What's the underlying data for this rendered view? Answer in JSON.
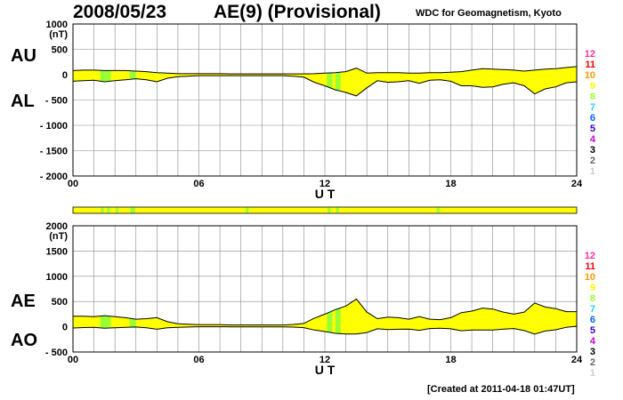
{
  "header": {
    "date": "2008/05/23",
    "title": "AE(9)  (Provisional)",
    "org": "WDC for Geomagnetism, Kyoto"
  },
  "footer": "[Created at 2011-04-18 01:47UT]",
  "legend_levels": [
    {
      "label": "12",
      "color": "#ff3399"
    },
    {
      "label": "11",
      "color": "#ff0000"
    },
    {
      "label": "10",
      "color": "#ff9900"
    },
    {
      "label": "9",
      "color": "#ffff00"
    },
    {
      "label": "8",
      "color": "#99ff33"
    },
    {
      "label": "7",
      "color": "#33ccff"
    },
    {
      "label": "6",
      "color": "#0066ff"
    },
    {
      "label": "5",
      "color": "#3300cc"
    },
    {
      "label": "4",
      "color": "#cc00cc"
    },
    {
      "label": "3",
      "color": "#000000"
    },
    {
      "label": "2",
      "color": "#666666"
    },
    {
      "label": "1",
      "color": "#cccccc"
    }
  ],
  "colors": {
    "fill": "#ffff00",
    "flag_green": "#99ff33",
    "grid": "#888888"
  },
  "station_strip": {
    "base_color": "#ffff00",
    "green_hours": [
      1.4,
      1.7,
      2.1,
      2.8,
      2.9,
      8.3,
      12.2,
      12.6,
      17.4
    ]
  },
  "chart_data": [
    {
      "type": "area",
      "name": "AU/AL",
      "unit_label": "(nT)",
      "side_labels": [
        "AU",
        "AL"
      ],
      "xlabel": "U T",
      "xlim": [
        0,
        24
      ],
      "ylim": [
        -2000,
        1000
      ],
      "x_ticks": [
        "00",
        "06",
        "12",
        "18",
        "24"
      ],
      "y_ticks": [
        "1000",
        "500",
        "0",
        "- 500",
        "- 1000",
        "- 1500",
        "- 2000"
      ],
      "y_tick_values": [
        1000,
        500,
        0,
        -500,
        -1000,
        -1500,
        -2000
      ],
      "green_bands": [
        [
          1.3,
          1.8
        ],
        [
          2.7,
          3.0
        ],
        [
          12.1,
          12.35
        ],
        [
          12.5,
          12.75
        ]
      ],
      "x": [
        0,
        0.5,
        1,
        1.5,
        2,
        2.5,
        3,
        3.5,
        4,
        4.5,
        5,
        5.5,
        6,
        6.5,
        7,
        7.5,
        8,
        8.5,
        9,
        9.5,
        10,
        10.5,
        11,
        11.5,
        12,
        12.5,
        13,
        13.5,
        14,
        14.5,
        15,
        15.5,
        16,
        16.5,
        17,
        17.5,
        18,
        18.5,
        19,
        19.5,
        20,
        20.5,
        21,
        21.5,
        22,
        22.5,
        23,
        23.5,
        24
      ],
      "series": [
        {
          "name": "AU",
          "values": [
            80,
            90,
            90,
            80,
            80,
            80,
            70,
            60,
            40,
            30,
            20,
            20,
            20,
            20,
            20,
            15,
            15,
            15,
            15,
            15,
            15,
            15,
            15,
            20,
            30,
            40,
            60,
            130,
            30,
            40,
            40,
            40,
            30,
            30,
            40,
            40,
            50,
            60,
            90,
            120,
            110,
            100,
            90,
            70,
            90,
            110,
            120,
            140,
            160
          ]
        },
        {
          "name": "AL",
          "values": [
            -130,
            -120,
            -110,
            -140,
            -120,
            -100,
            -80,
            -100,
            -140,
            -70,
            -40,
            -30,
            -20,
            -20,
            -20,
            -20,
            -20,
            -20,
            -20,
            -20,
            -20,
            -30,
            -50,
            -150,
            -220,
            -300,
            -350,
            -420,
            -260,
            -120,
            -150,
            -140,
            -120,
            -170,
            -110,
            -100,
            -130,
            -220,
            -220,
            -250,
            -240,
            -190,
            -160,
            -220,
            -380,
            -280,
            -240,
            -160,
            -140
          ]
        }
      ]
    },
    {
      "type": "area",
      "name": "AE/AO",
      "unit_label": "(nT)",
      "side_labels": [
        "AE",
        "AO"
      ],
      "xlabel": "U T",
      "xlim": [
        0,
        24
      ],
      "ylim": [
        -500,
        2000
      ],
      "x_ticks": [
        "00",
        "06",
        "12",
        "18",
        "24"
      ],
      "y_ticks": [
        "2000",
        "1500",
        "1000",
        "500",
        "0",
        "- 500"
      ],
      "y_tick_values": [
        2000,
        1500,
        1000,
        500,
        0,
        -500
      ],
      "green_bands": [
        [
          1.3,
          1.8
        ],
        [
          2.7,
          3.0
        ],
        [
          12.1,
          12.35
        ],
        [
          12.5,
          12.75
        ]
      ],
      "x": [
        0,
        0.5,
        1,
        1.5,
        2,
        2.5,
        3,
        3.5,
        4,
        4.5,
        5,
        5.5,
        6,
        6.5,
        7,
        7.5,
        8,
        8.5,
        9,
        9.5,
        10,
        10.5,
        11,
        11.5,
        12,
        12.5,
        13,
        13.5,
        14,
        14.5,
        15,
        15.5,
        16,
        16.5,
        17,
        17.5,
        18,
        18.5,
        19,
        19.5,
        20,
        20.5,
        21,
        21.5,
        22,
        22.5,
        23,
        23.5,
        24
      ],
      "series": [
        {
          "name": "AE",
          "values": [
            210,
            210,
            200,
            220,
            200,
            180,
            150,
            160,
            180,
            100,
            60,
            50,
            40,
            40,
            40,
            35,
            35,
            35,
            35,
            35,
            35,
            45,
            65,
            170,
            250,
            340,
            410,
            550,
            290,
            160,
            190,
            180,
            150,
            200,
            150,
            140,
            180,
            280,
            310,
            370,
            350,
            290,
            250,
            290,
            470,
            390,
            360,
            300,
            300
          ]
        },
        {
          "name": "AO",
          "values": [
            -25,
            -15,
            -10,
            -30,
            -20,
            -10,
            -5,
            -20,
            -50,
            -20,
            -10,
            -5,
            0,
            0,
            0,
            -2,
            -2,
            -2,
            -2,
            -2,
            -2,
            -7,
            -17,
            -65,
            -95,
            -130,
            -145,
            -145,
            -115,
            -40,
            -55,
            -50,
            -45,
            -70,
            -35,
            -30,
            -40,
            -80,
            -65,
            -65,
            -65,
            -45,
            -35,
            -75,
            -145,
            -85,
            -60,
            -10,
            10
          ]
        }
      ]
    }
  ]
}
